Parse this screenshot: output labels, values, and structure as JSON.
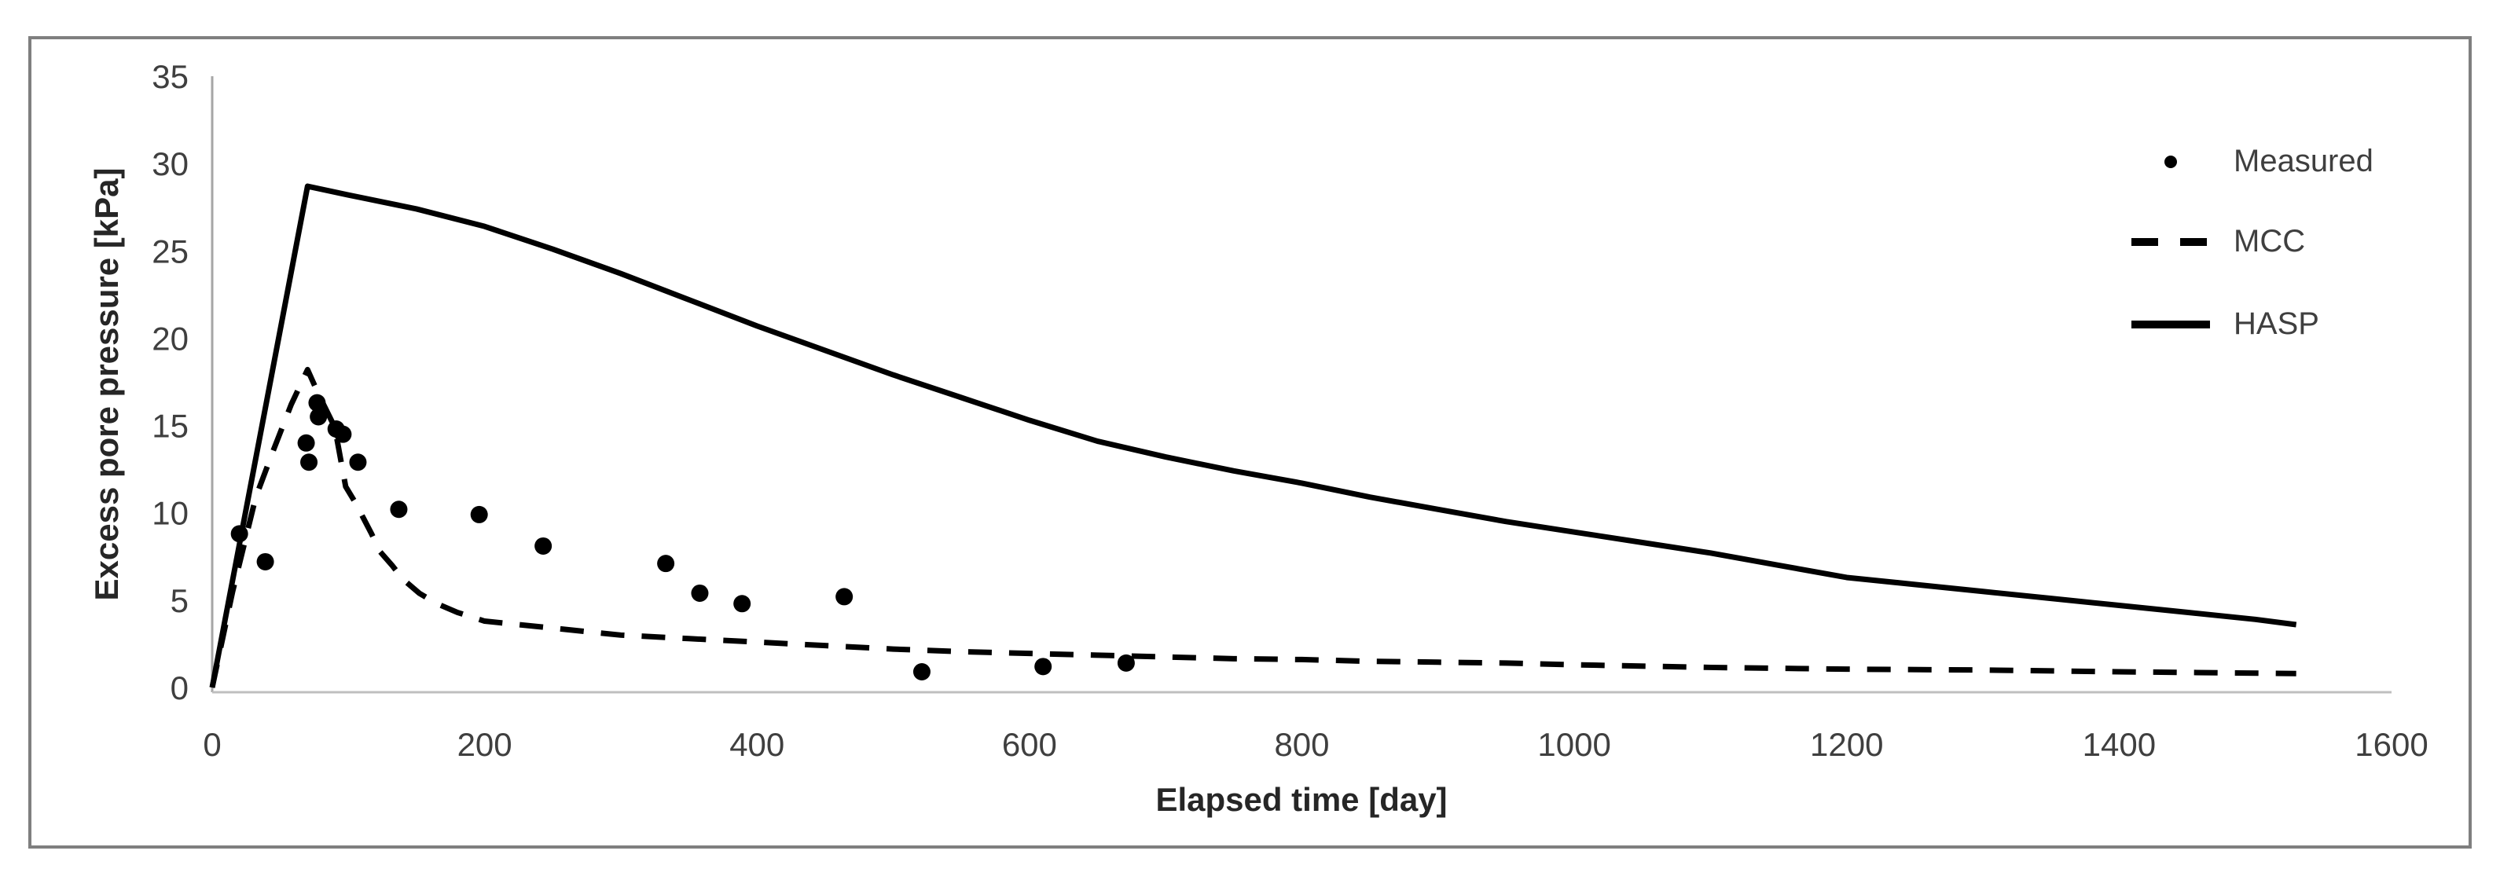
{
  "chart_data": {
    "type": "line",
    "title": "",
    "xlabel": "Elapsed time [day]",
    "ylabel": "Excess pore pressure [kPa]",
    "xlim": [
      0,
      1600
    ],
    "ylim": [
      0,
      35
    ],
    "x_ticks": [
      0,
      200,
      400,
      600,
      800,
      1000,
      1200,
      1400,
      1600
    ],
    "y_ticks": [
      0,
      5,
      10,
      15,
      20,
      25,
      30,
      35
    ],
    "grid": false,
    "legend_position": "right-upper-inside",
    "series": [
      {
        "name": "Measured",
        "type": "scatter",
        "marker": "filled-circle",
        "color": "#000000",
        "points": [
          [
            20,
            8.8
          ],
          [
            39,
            7.2
          ],
          [
            69,
            14.0
          ],
          [
            71,
            12.9
          ],
          [
            77,
            16.3
          ],
          [
            78,
            15.5
          ],
          [
            91,
            14.8
          ],
          [
            96,
            14.5
          ],
          [
            107,
            12.9
          ],
          [
            137,
            10.2
          ],
          [
            196,
            9.9
          ],
          [
            243,
            8.1
          ],
          [
            333,
            7.1
          ],
          [
            358,
            5.4
          ],
          [
            389,
            4.8
          ],
          [
            464,
            5.2
          ],
          [
            521,
            0.9
          ],
          [
            610,
            1.2
          ],
          [
            671,
            1.4
          ]
        ]
      },
      {
        "name": "MCC",
        "type": "line",
        "style": "dashed",
        "color": "#000000",
        "points": [
          [
            0,
            0
          ],
          [
            15,
            5.5
          ],
          [
            32,
            10.9
          ],
          [
            45,
            13.6
          ],
          [
            58,
            16.2
          ],
          [
            70,
            18.2
          ],
          [
            78,
            16.8
          ],
          [
            90,
            14.9
          ],
          [
            98,
            11.5
          ],
          [
            105,
            10.6
          ],
          [
            111,
            9.7
          ],
          [
            117,
            8.8
          ],
          [
            123,
            7.8
          ],
          [
            132,
            7.0
          ],
          [
            140,
            6.2
          ],
          [
            152,
            5.4
          ],
          [
            165,
            4.8
          ],
          [
            180,
            4.3
          ],
          [
            200,
            3.8
          ],
          [
            250,
            3.4
          ],
          [
            300,
            3.0
          ],
          [
            350,
            2.8
          ],
          [
            400,
            2.6
          ],
          [
            450,
            2.4
          ],
          [
            500,
            2.2
          ],
          [
            550,
            2.05
          ],
          [
            600,
            1.95
          ],
          [
            650,
            1.85
          ],
          [
            700,
            1.75
          ],
          [
            750,
            1.65
          ],
          [
            800,
            1.6
          ],
          [
            850,
            1.5
          ],
          [
            900,
            1.45
          ],
          [
            950,
            1.4
          ],
          [
            1000,
            1.3
          ],
          [
            1100,
            1.15
          ],
          [
            1200,
            1.05
          ],
          [
            1300,
            1.0
          ],
          [
            1400,
            0.9
          ],
          [
            1530,
            0.8
          ]
        ]
      },
      {
        "name": "HASP",
        "type": "line",
        "style": "solid",
        "color": "#000000",
        "points": [
          [
            0,
            0
          ],
          [
            70,
            28.7
          ],
          [
            100,
            28.2
          ],
          [
            150,
            27.4
          ],
          [
            200,
            26.4
          ],
          [
            250,
            25.1
          ],
          [
            300,
            23.7
          ],
          [
            350,
            22.2
          ],
          [
            400,
            20.7
          ],
          [
            450,
            19.3
          ],
          [
            500,
            17.9
          ],
          [
            550,
            16.6
          ],
          [
            600,
            15.3
          ],
          [
            650,
            14.1
          ],
          [
            700,
            13.2
          ],
          [
            750,
            12.4
          ],
          [
            800,
            11.7
          ],
          [
            850,
            10.9
          ],
          [
            900,
            10.2
          ],
          [
            950,
            9.5
          ],
          [
            1000,
            8.9
          ],
          [
            1050,
            8.3
          ],
          [
            1100,
            7.7
          ],
          [
            1150,
            7.0
          ],
          [
            1200,
            6.3
          ],
          [
            1250,
            5.9
          ],
          [
            1300,
            5.5
          ],
          [
            1350,
            5.1
          ],
          [
            1400,
            4.7
          ],
          [
            1450,
            4.3
          ],
          [
            1500,
            3.9
          ],
          [
            1530,
            3.6
          ]
        ]
      }
    ],
    "legend_items": [
      {
        "label": "Measured",
        "marker": "dot"
      },
      {
        "label": "MCC",
        "marker": "dashed-line"
      },
      {
        "label": "HASP",
        "marker": "solid-line"
      }
    ]
  },
  "colors": {
    "series": "#000000",
    "axis_x_line": "#bfbfbf",
    "axis_y_line": "#a6a6a6",
    "outer_border": "#7f7f7f",
    "text": "#3f3f3f",
    "background": "#ffffff"
  }
}
